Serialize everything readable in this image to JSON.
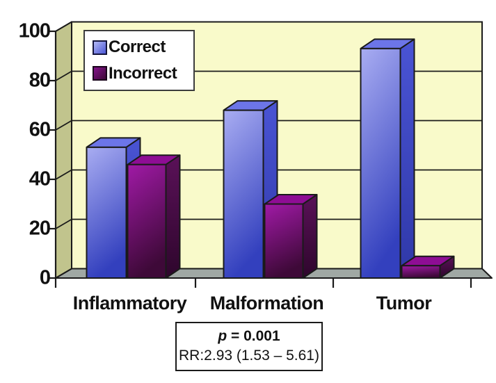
{
  "chart_data": {
    "type": "bar",
    "title": "",
    "xlabel": "",
    "ylabel": "",
    "categories": [
      "Inflammatory",
      "Malformation",
      "Tumor"
    ],
    "series": [
      {
        "name": "Correct",
        "values": [
          53,
          68,
          93
        ]
      },
      {
        "name": "Incorrect",
        "values": [
          46,
          30,
          5
        ]
      }
    ],
    "ylim": [
      0,
      100
    ],
    "yticks": [
      0,
      20,
      40,
      60,
      80,
      100
    ],
    "grid": true,
    "legend_position": "top-left-inside",
    "style_3d": true,
    "colors": {
      "correct_light": "#a9adf2",
      "correct_dark": "#3340be",
      "correct_top": "#6c75e8",
      "correct_side_light": "#4a54d4",
      "correct_side_dark": "#2f38a8",
      "incorrect_light": "#a01aa6",
      "incorrect_dark": "#3e0938",
      "incorrect_top": "#8e0d94",
      "incorrect_side_light": "#5a1158",
      "incorrect_side_dark": "#2e062c",
      "wall": "#f9faca",
      "side_wall": "#c1c48d",
      "floor": "#a0a8a4",
      "outline": "#1a1a1a"
    }
  },
  "annotation": {
    "p_symbol": "p",
    "p_equals": "= 0.001",
    "rr_text": "RR:2.93 (1.53 – 5.61)"
  }
}
